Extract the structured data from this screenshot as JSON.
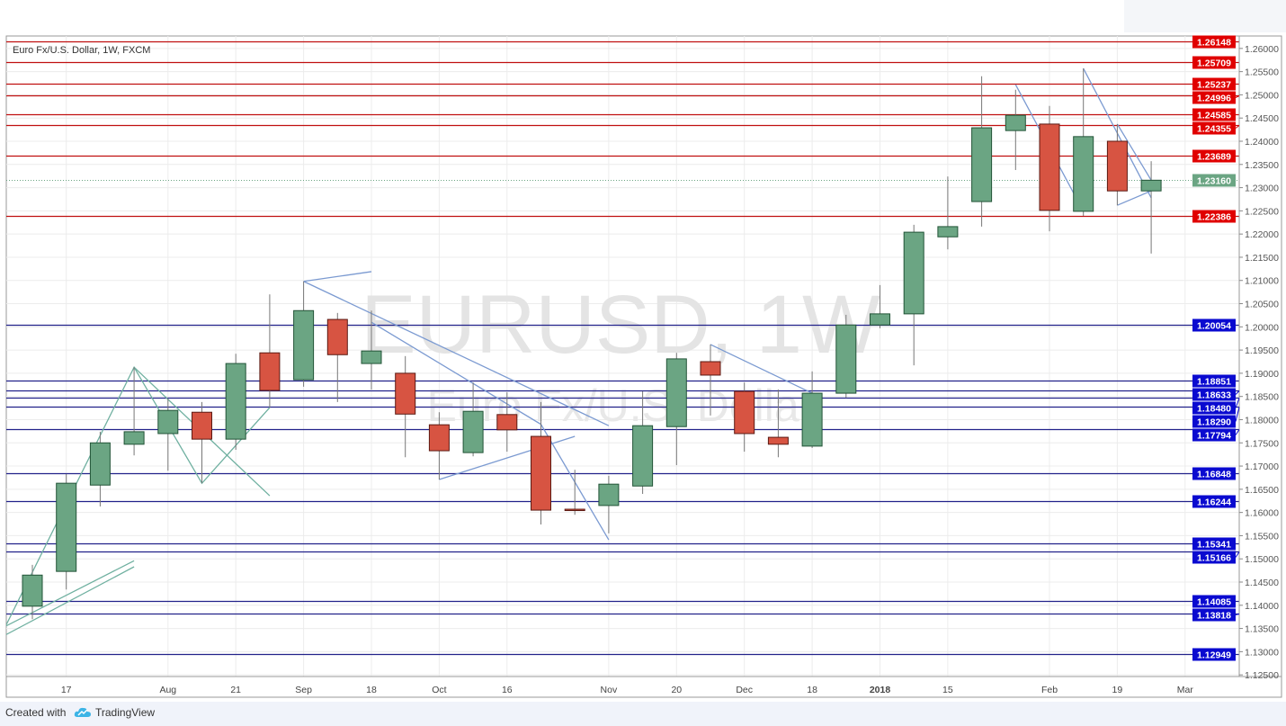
{
  "chart_data": {
    "type": "candlestick",
    "title": "Euro Fx/U.S. Dollar, 1W, FXCM",
    "watermark": {
      "symbol": "EURUSD, 1W",
      "description": "Euro Fx/U.S. Dollar"
    },
    "ylim": [
      1.1225,
      1.2635
    ],
    "grid": true,
    "y_ticks": [
      "1.12500",
      "1.13000",
      "1.13500",
      "1.14000",
      "1.14500",
      "1.15000",
      "1.15500",
      "1.16000",
      "1.16500",
      "1.17000",
      "1.17500",
      "1.18000",
      "1.18500",
      "1.19000",
      "1.19500",
      "1.20000",
      "1.20500",
      "1.21000",
      "1.21500",
      "1.22000",
      "1.22500",
      "1.23000",
      "1.23500",
      "1.24000",
      "1.24500",
      "1.25000",
      "1.25500",
      "1.26000"
    ],
    "x_ticks": [
      {
        "label": "17",
        "date": "2017-07-17"
      },
      {
        "label": "Aug",
        "date": "2017-08-07"
      },
      {
        "label": "21",
        "date": "2017-08-21"
      },
      {
        "label": "Sep",
        "date": "2017-09-04"
      },
      {
        "label": "18",
        "date": "2017-09-18"
      },
      {
        "label": "Oct",
        "date": "2017-10-02"
      },
      {
        "label": "16",
        "date": "2017-10-16"
      },
      {
        "label": "Nov",
        "date": "2017-11-06"
      },
      {
        "label": "20",
        "date": "2017-11-20"
      },
      {
        "label": "Dec",
        "date": "2017-12-04"
      },
      {
        "label": "18",
        "date": "2017-12-18"
      },
      {
        "label": "2018",
        "date": "2018-01-01"
      },
      {
        "label": "15",
        "date": "2018-01-15"
      },
      {
        "label": "Feb",
        "date": "2018-02-05"
      },
      {
        "label": "19",
        "date": "2018-02-19"
      },
      {
        "label": "Mar",
        "date": "2018-03-05"
      }
    ],
    "candles": [
      {
        "date": "2017-07-10",
        "o": 1.1398,
        "h": 1.1487,
        "l": 1.137,
        "c": 1.1465
      },
      {
        "date": "2017-07-17",
        "o": 1.1473,
        "h": 1.1683,
        "l": 1.1434,
        "c": 1.1663
      },
      {
        "date": "2017-07-24",
        "o": 1.1659,
        "h": 1.1774,
        "l": 1.1613,
        "c": 1.175
      },
      {
        "date": "2017-07-31",
        "o": 1.1747,
        "h": 1.1913,
        "l": 1.1723,
        "c": 1.1774
      },
      {
        "date": "2017-08-07",
        "o": 1.177,
        "h": 1.1845,
        "l": 1.169,
        "c": 1.182
      },
      {
        "date": "2017-08-14",
        "o": 1.1816,
        "h": 1.1838,
        "l": 1.1663,
        "c": 1.1758
      },
      {
        "date": "2017-08-21",
        "o": 1.1758,
        "h": 1.1942,
        "l": 1.1735,
        "c": 1.1921
      },
      {
        "date": "2017-08-28",
        "o": 1.1944,
        "h": 1.207,
        "l": 1.1826,
        "c": 1.1863
      },
      {
        "date": "2017-09-04",
        "o": 1.1886,
        "h": 1.2098,
        "l": 1.1871,
        "c": 1.2035
      },
      {
        "date": "2017-09-11",
        "o": 1.2016,
        "h": 1.203,
        "l": 1.1838,
        "c": 1.194
      },
      {
        "date": "2017-09-18",
        "o": 1.1921,
        "h": 1.2035,
        "l": 1.1865,
        "c": 1.1948
      },
      {
        "date": "2017-09-25",
        "o": 1.19,
        "h": 1.1937,
        "l": 1.1719,
        "c": 1.1812
      },
      {
        "date": "2017-10-02",
        "o": 1.1789,
        "h": 1.1816,
        "l": 1.1671,
        "c": 1.1733
      },
      {
        "date": "2017-10-09",
        "o": 1.1729,
        "h": 1.188,
        "l": 1.1721,
        "c": 1.1818
      },
      {
        "date": "2017-10-16",
        "o": 1.1811,
        "h": 1.1859,
        "l": 1.1731,
        "c": 1.1778
      },
      {
        "date": "2017-10-23",
        "o": 1.1764,
        "h": 1.1838,
        "l": 1.1574,
        "c": 1.1605
      },
      {
        "date": "2017-10-30",
        "o": 1.1607,
        "h": 1.1692,
        "l": 1.1595,
        "c": 1.1605
      },
      {
        "date": "2017-11-06",
        "o": 1.1615,
        "h": 1.1679,
        "l": 1.1555,
        "c": 1.1661
      },
      {
        "date": "2017-11-13",
        "o": 1.1657,
        "h": 1.1861,
        "l": 1.164,
        "c": 1.1787
      },
      {
        "date": "2017-11-20",
        "o": 1.1785,
        "h": 1.1944,
        "l": 1.1702,
        "c": 1.1931
      },
      {
        "date": "2017-11-27",
        "o": 1.1925,
        "h": 1.1962,
        "l": 1.1809,
        "c": 1.1896
      },
      {
        "date": "2017-12-04",
        "o": 1.1861,
        "h": 1.188,
        "l": 1.1731,
        "c": 1.177
      },
      {
        "date": "2017-12-11",
        "o": 1.1762,
        "h": 1.1865,
        "l": 1.1719,
        "c": 1.1747
      },
      {
        "date": "2017-12-18",
        "o": 1.1743,
        "h": 1.1904,
        "l": 1.1739,
        "c": 1.1857
      },
      {
        "date": "2017-12-25",
        "o": 1.1857,
        "h": 1.2026,
        "l": 1.1847,
        "c": 1.2004
      },
      {
        "date": "2018-01-01",
        "o": 1.2004,
        "h": 1.209,
        "l": 1.1997,
        "c": 1.2028
      },
      {
        "date": "2018-01-08",
        "o": 1.2028,
        "h": 1.222,
        "l": 1.1917,
        "c": 1.2204
      },
      {
        "date": "2018-01-15",
        "o": 1.2194,
        "h": 1.2324,
        "l": 1.2167,
        "c": 1.2216
      },
      {
        "date": "2018-01-22",
        "o": 1.227,
        "h": 1.254,
        "l": 1.2216,
        "c": 1.2429
      },
      {
        "date": "2018-01-29",
        "o": 1.2423,
        "h": 1.2511,
        "l": 1.2338,
        "c": 1.2456
      },
      {
        "date": "2018-02-05",
        "o": 1.2437,
        "h": 1.2476,
        "l": 1.2206,
        "c": 1.2251
      },
      {
        "date": "2018-02-12",
        "o": 1.2249,
        "h": 1.2557,
        "l": 1.2239,
        "c": 1.241
      },
      {
        "date": "2018-02-19",
        "o": 1.24,
        "h": 1.2437,
        "l": 1.2262,
        "c": 1.2293
      },
      {
        "date": "2018-02-26",
        "o": 1.2293,
        "h": 1.2357,
        "l": 1.2158,
        "c": 1.2316
      }
    ],
    "last_price": "1.23160",
    "resistance_levels": [
      "1.26148",
      "1.25709",
      "1.25237",
      "1.24996",
      "1.24585",
      "1.24355",
      "1.23689",
      "1.22386"
    ],
    "support_levels": [
      "1.20054",
      "1.18851",
      "1.18633",
      "1.18480",
      "1.18290",
      "1.17794",
      "1.16848",
      "1.16244",
      "1.15341",
      "1.15166",
      "1.14085",
      "1.13818",
      "1.12949"
    ],
    "trendlines": [
      {
        "color": "#7b9ad1",
        "points": [
          [
            "2017-09-04",
            1.2098
          ],
          [
            "2017-09-18",
            1.2119
          ]
        ]
      },
      {
        "color": "#7b9ad1",
        "points": [
          [
            "2017-09-04",
            1.2098
          ],
          [
            "2017-11-06",
            1.1787
          ]
        ]
      },
      {
        "color": "#7b9ad1",
        "points": [
          [
            "2017-09-18",
            1.201
          ],
          [
            "2017-10-23",
            1.179
          ],
          [
            "2017-11-06",
            1.1541
          ]
        ]
      },
      {
        "color": "#6fb0a0",
        "points": [
          [
            "2017-07-03",
            1.1324
          ],
          [
            "2017-07-31",
            1.1913
          ],
          [
            "2017-08-14",
            1.1663
          ],
          [
            "2017-08-28",
            1.1826
          ]
        ]
      },
      {
        "color": "#6fb0a0",
        "points": [
          [
            "2017-07-31",
            1.1913
          ],
          [
            "2017-08-28",
            1.1636
          ]
        ]
      },
      {
        "color": "#6fb0a0",
        "points": [
          [
            "2017-07-03",
            1.1347
          ],
          [
            "2017-07-31",
            1.1496
          ]
        ]
      },
      {
        "color": "#6fb0a0",
        "points": [
          [
            "2017-07-03",
            1.1328
          ],
          [
            "2017-07-31",
            1.1483
          ]
        ]
      },
      {
        "color": "#7b9ad1",
        "points": [
          [
            "2017-10-02",
            1.1671
          ],
          [
            "2017-10-30",
            1.1764
          ]
        ]
      },
      {
        "color": "#7b9ad1",
        "points": [
          [
            "2017-11-27",
            1.1962
          ],
          [
            "2017-12-18",
            1.1857
          ]
        ]
      },
      {
        "color": "#7b9ad1",
        "points": [
          [
            "2018-01-29",
            1.2522
          ],
          [
            "2018-02-12",
            1.2249
          ]
        ]
      },
      {
        "color": "#7b9ad1",
        "points": [
          [
            "2018-02-12",
            1.2557
          ],
          [
            "2018-02-26",
            1.2278
          ]
        ]
      },
      {
        "color": "#7b9ad1",
        "points": [
          [
            "2018-02-19",
            1.2437
          ],
          [
            "2018-02-26",
            1.2316
          ]
        ]
      },
      {
        "color": "#7b9ad1",
        "points": [
          [
            "2018-02-19",
            1.2262
          ],
          [
            "2018-02-26",
            1.2293
          ]
        ]
      }
    ],
    "colors": {
      "up": "#6ba583",
      "up_border": "#225437",
      "down": "#d75442",
      "down_border": "#5b1a13",
      "resistance": "#cc0000",
      "support": "#0000cc",
      "last": "#6ba583"
    }
  },
  "footer": {
    "created_with": "Created with",
    "brand": "TradingView",
    "logo_icon": "tradingview-cloud-icon"
  }
}
